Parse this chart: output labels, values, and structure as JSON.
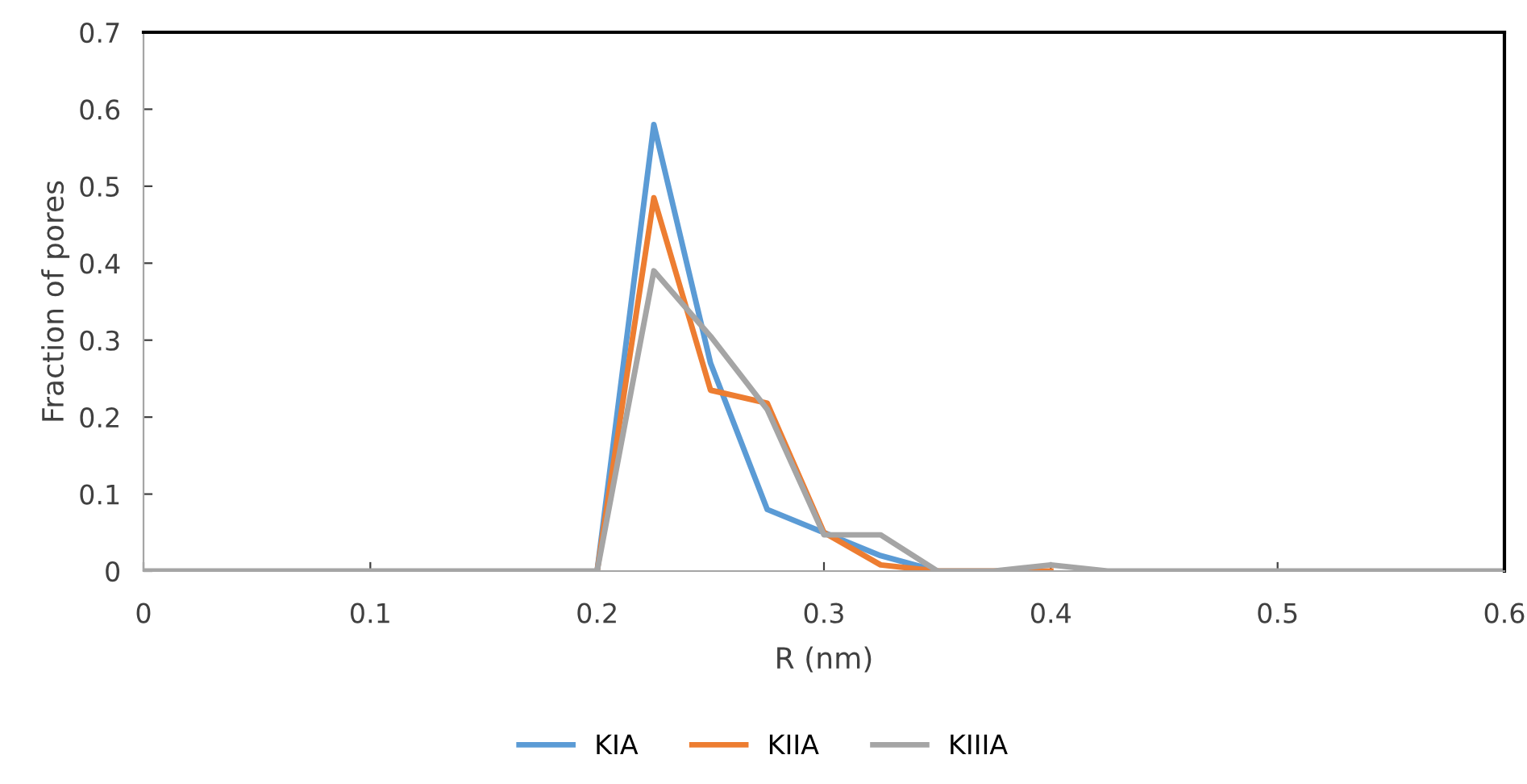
{
  "chart_data": {
    "type": "line",
    "xlabel": "R (nm)",
    "ylabel": "Fraction of pores",
    "x": [
      0,
      0.025,
      0.05,
      0.075,
      0.1,
      0.125,
      0.15,
      0.175,
      0.2,
      0.225,
      0.25,
      0.275,
      0.3,
      0.325,
      0.35,
      0.375,
      0.4,
      0.425,
      0.45,
      0.475,
      0.5,
      0.525,
      0.55,
      0.575,
      0.6
    ],
    "series": [
      {
        "name": "KIA",
        "color": "#5b9bd5",
        "values": [
          null,
          null,
          null,
          null,
          null,
          null,
          null,
          null,
          0,
          0.58,
          0.27,
          0.08,
          0.05,
          0.02,
          0,
          null,
          null,
          null,
          null,
          null,
          null,
          null,
          null,
          null,
          null
        ]
      },
      {
        "name": "KIIA",
        "color": "#ed7d31",
        "values": [
          null,
          null,
          null,
          null,
          null,
          null,
          null,
          null,
          0,
          0.485,
          0.235,
          0.218,
          0.05,
          0.008,
          0,
          0,
          0,
          null,
          null,
          null,
          null,
          null,
          null,
          null,
          null
        ]
      },
      {
        "name": "KIIIA",
        "color": "#a5a5a5",
        "values": [
          0,
          0,
          0,
          0,
          0,
          0,
          0,
          0,
          0,
          0.39,
          0.305,
          0.21,
          0.047,
          0.047,
          0,
          0,
          0.008,
          0,
          0,
          0,
          0,
          0,
          0,
          0,
          0
        ]
      }
    ],
    "xlim": [
      0,
      0.6
    ],
    "xticks": [
      0,
      0.1,
      0.2,
      0.3,
      0.4,
      0.5,
      0.6
    ],
    "ylim": [
      0,
      0.7
    ],
    "yticks": [
      0,
      0.1,
      0.2,
      0.3,
      0.4,
      0.5,
      0.6,
      0.7
    ],
    "grid": false,
    "legend": "bottom",
    "marker": "none",
    "line_style": "solid"
  }
}
